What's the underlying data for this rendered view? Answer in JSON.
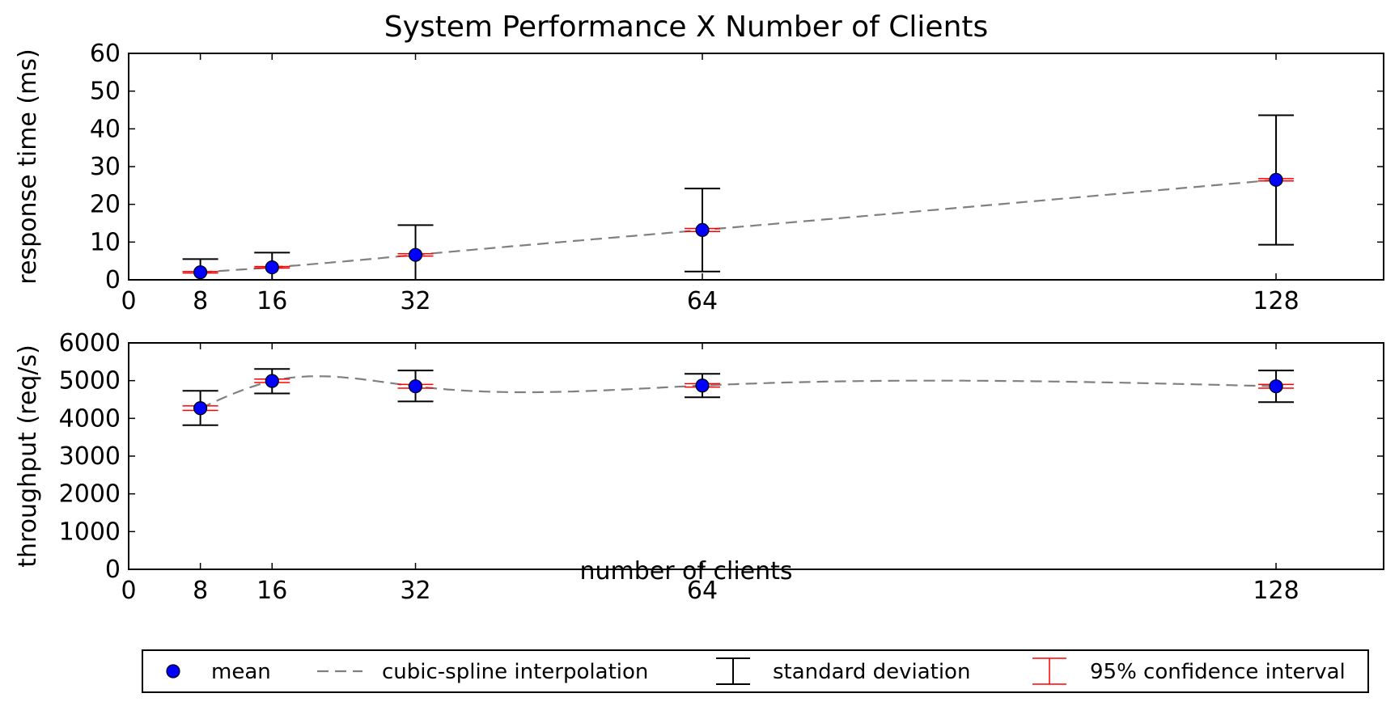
{
  "title": "System Performance X Number of Clients",
  "xlabel": "number of clients",
  "legend": {
    "placement": "bottom-center",
    "items": [
      {
        "label": "mean",
        "kind": "marker",
        "color": "#0000ff"
      },
      {
        "label": "cubic-spline interpolation",
        "kind": "dashed-line",
        "color": "#808080"
      },
      {
        "label": "standard deviation",
        "kind": "errorbar",
        "color": "#000000"
      },
      {
        "label": "95% confidence interval",
        "kind": "errorbar",
        "color": "#ff0000"
      }
    ]
  },
  "chart_data": [
    {
      "type": "scatter",
      "ylabel": "response time (ms)",
      "xlim": [
        0,
        140
      ],
      "ylim": [
        0,
        60
      ],
      "xticks": [
        0,
        8,
        16,
        32,
        64,
        128
      ],
      "yticks": [
        0,
        10,
        20,
        30,
        40,
        50,
        60
      ],
      "grid": false,
      "x": [
        8,
        16,
        32,
        64,
        128
      ],
      "mean": [
        2.0,
        3.3,
        6.6,
        13.2,
        26.5
      ],
      "std_low": [
        0.0,
        0.0,
        0.0,
        2.2,
        9.3
      ],
      "std_high": [
        5.5,
        7.2,
        14.5,
        24.2,
        43.6
      ],
      "ci_low": [
        1.8,
        3.1,
        6.3,
        12.8,
        26.2
      ],
      "ci_high": [
        2.2,
        3.5,
        6.9,
        13.6,
        26.8
      ]
    },
    {
      "type": "scatter",
      "ylabel": "throughput (req/s)",
      "xlim": [
        0,
        140
      ],
      "ylim": [
        0,
        6000
      ],
      "xticks": [
        0,
        8,
        16,
        32,
        64,
        128
      ],
      "yticks": [
        0,
        1000,
        2000,
        3000,
        4000,
        5000,
        6000
      ],
      "grid": false,
      "x": [
        8,
        16,
        32,
        64,
        128
      ],
      "mean": [
        4270,
        4990,
        4850,
        4870,
        4850
      ],
      "std_low": [
        3820,
        4660,
        4450,
        4560,
        4430
      ],
      "std_high": [
        4730,
        5310,
        5270,
        5180,
        5270
      ],
      "ci_low": [
        4210,
        4950,
        4800,
        4830,
        4800
      ],
      "ci_high": [
        4330,
        5040,
        4900,
        4920,
        4900
      ]
    }
  ]
}
